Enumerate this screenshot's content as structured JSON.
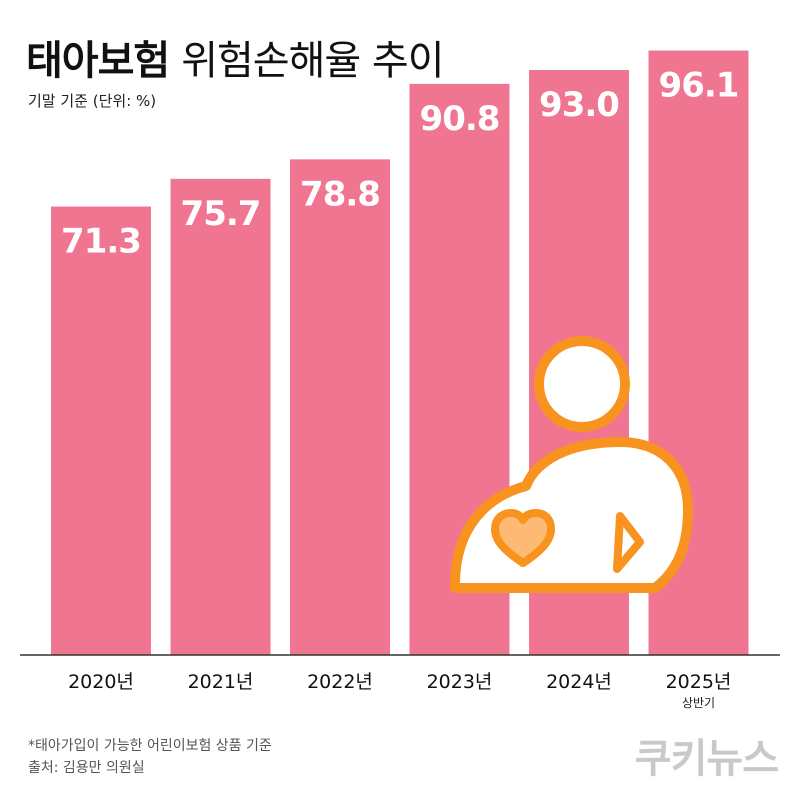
{
  "header": {
    "title_bold": "태아보험",
    "title_rest": "위험손해율 추이",
    "subtitle": "기말 기준 (단위: %)"
  },
  "chart_data": {
    "type": "bar",
    "categories": [
      "2020년",
      "2021년",
      "2022년",
      "2023년",
      "2024년",
      "2025년"
    ],
    "category_sublabels": [
      "",
      "",
      "",
      "",
      "",
      "상반기"
    ],
    "values": [
      71.3,
      75.7,
      78.8,
      90.8,
      93.0,
      96.1
    ],
    "value_labels": [
      "71.3",
      "75.7",
      "78.8",
      "90.8",
      "93.0",
      "96.1"
    ],
    "unit": "%",
    "ylim": [
      0,
      100
    ],
    "grid": false,
    "colors": {
      "bar": "#F07590",
      "label": "#ffffff",
      "axis": "#333333"
    }
  },
  "illustration": {
    "icon": "person-with-heart-icon",
    "stroke_color": "#F7931E",
    "fill_color": "#ffffff",
    "heart_color": "#FDBA74"
  },
  "footer": {
    "note": "*태아가입이 가능한 어린이보험 상품 기준",
    "source": "출처: 김용만 의원실",
    "brand": "쿠키뉴스"
  }
}
